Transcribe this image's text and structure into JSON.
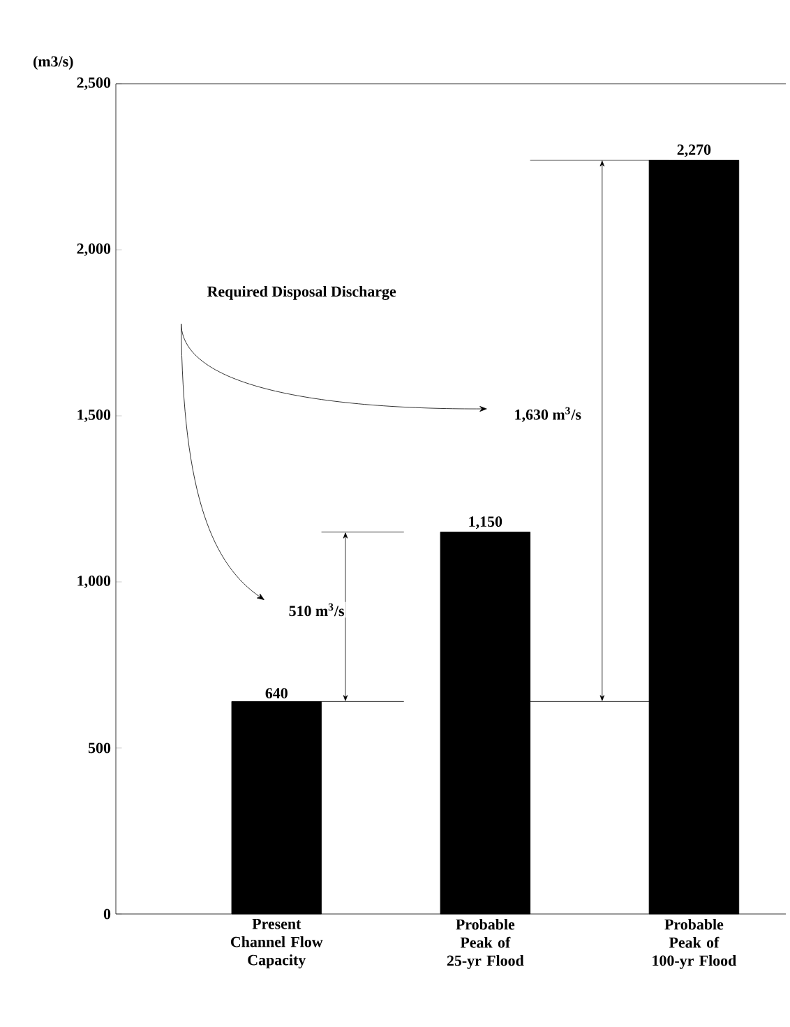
{
  "chart_data": {
    "type": "bar",
    "ylabel": "(m3/s)",
    "categories": [
      "Present Channel Flow Capacity",
      "Probable Peak of 25-yr Flood",
      "Probable Peak of 100-yr Flood"
    ],
    "values": [
      640,
      1150,
      2270
    ],
    "color": "#000000",
    "value_labels": [
      "640",
      "1,150",
      "2,270"
    ],
    "ylim": [
      0,
      2500
    ],
    "yticks": [
      {
        "value": 0,
        "label": "0"
      },
      {
        "value": 500,
        "label": "500"
      },
      {
        "value": 1000,
        "label": "1,000"
      },
      {
        "value": 1500,
        "label": "1,500"
      },
      {
        "value": 2000,
        "label": "2,000"
      },
      {
        "value": 2500,
        "label": "2,500"
      }
    ],
    "annotations": [
      "Required Disposal Discharge",
      "510 m$^{3}$/s",
      "1,630 m$^{3}$/s"
    ],
    "ref_lines": [
      {
        "axis": "y",
        "value": 640
      },
      {
        "axis": "y",
        "value": 1150
      },
      {
        "axis": "y",
        "value": 2270
      }
    ],
    "grid": false
  }
}
